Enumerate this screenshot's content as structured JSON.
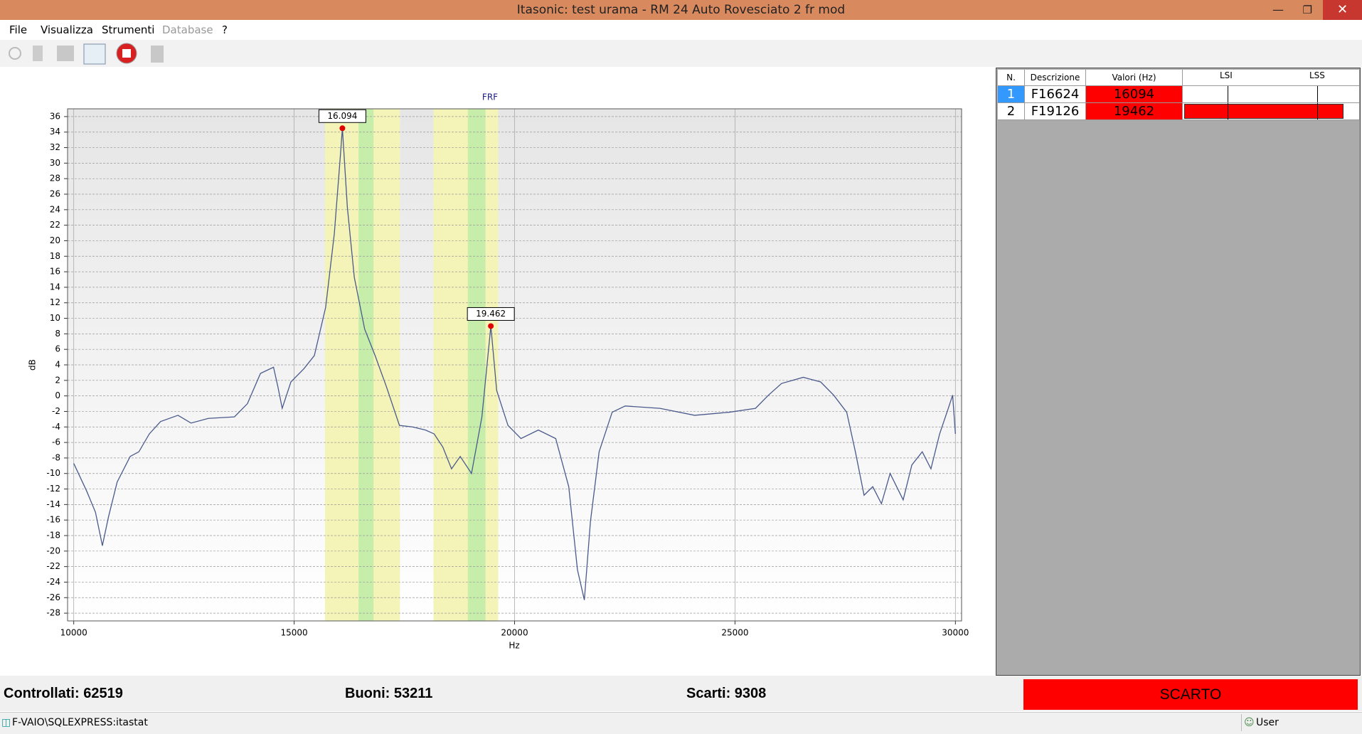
{
  "window": {
    "title": "Itasonic: test urama - RM 24 Auto Rovesciato 2 fr mod"
  },
  "menu": [
    "File",
    "Visualizza",
    "Strumenti",
    "Database",
    "?"
  ],
  "chart_data": {
    "type": "line",
    "title": "FRF",
    "x_label": "Hz",
    "y_label": "dB",
    "xlim": [
      9860,
      30140
    ],
    "ylim": [
      -29,
      37
    ],
    "xticks": [
      10000,
      15000,
      20000,
      25000,
      30000
    ],
    "yticks": [
      -28,
      -26,
      -24,
      -22,
      -20,
      -18,
      -16,
      -14,
      -12,
      -10,
      -8,
      -6,
      -4,
      -2,
      0,
      2,
      4,
      6,
      8,
      10,
      12,
      14,
      16,
      18,
      20,
      22,
      24,
      26,
      28,
      30,
      32,
      34,
      36
    ],
    "grid": true,
    "bands": [
      {
        "x": [
          15700,
          17400
        ],
        "color": "#f4f4b8"
      },
      {
        "x": [
          18160,
          19630
        ],
        "color": "#f4f4b8"
      },
      {
        "x": [
          16460,
          16800
        ],
        "color": "#c6eeaa"
      },
      {
        "x": [
          18940,
          19340
        ],
        "color": "#c6eeaa"
      }
    ],
    "x": [
      10000,
      10296,
      10493,
      10650,
      10788,
      10985,
      11281,
      11478,
      11714,
      11970,
      12364,
      12660,
      13054,
      13645,
      13940,
      14236,
      14532,
      14630,
      14729,
      14926,
      15221,
      15458,
      15714,
      15911,
      16049,
      16094,
      16207,
      16364,
      16600,
      16836,
      17092,
      17388,
      17683,
      17979,
      18176,
      18373,
      18570,
      18767,
      19023,
      19259,
      19462,
      19594,
      19850,
      20145,
      20539,
      20933,
      21229,
      21426,
      21583,
      21721,
      21918,
      22214,
      22509,
      23297,
      24085,
      24874,
      25465,
      25760,
      26056,
      26549,
      26943,
      27238,
      27534,
      27731,
      27928,
      28125,
      28322,
      28519,
      28815,
      29012,
      29248,
      29445,
      29642,
      29839,
      29937,
      30000
    ],
    "series": [
      {
        "color": "#4a5a8c",
        "values": [
          -8.7,
          -12.3,
          -15,
          -19.3,
          -15.6,
          -11.1,
          -7.8,
          -7.2,
          -4.9,
          -3.3,
          -2.5,
          -3.5,
          -2.9,
          -2.7,
          -1,
          2.9,
          3.7,
          1.2,
          -1.6,
          1.8,
          3.5,
          5.2,
          11.4,
          20.9,
          31,
          34.5,
          24.3,
          15.3,
          8.6,
          5.2,
          1.2,
          -3.8,
          -4,
          -4.4,
          -4.9,
          -6.6,
          -9.4,
          -7.8,
          -10,
          -2.7,
          9,
          0.7,
          -3.8,
          -5.5,
          -4.4,
          -5.5,
          -11.7,
          -22.4,
          -26.3,
          -16.2,
          -7.2,
          -2.1,
          -1.3,
          -1.6,
          -2.5,
          -2.1,
          -1.6,
          0.1,
          1.6,
          2.4,
          1.8,
          0.1,
          -2.1,
          -7.2,
          -12.8,
          -11.7,
          -13.9,
          -10,
          -13.4,
          -8.9,
          -7.2,
          -9.4,
          -4.9,
          -1.6,
          0.1,
          -4.9
        ]
      }
    ],
    "markers": {
      "color": "#e00000",
      "x": [
        16094,
        19462
      ],
      "values": [
        34.5,
        9
      ],
      "value_labels": [
        "16.094",
        "19.462"
      ]
    }
  },
  "table": {
    "header": [
      "N.",
      "Descrizione",
      "Valori (Hz)",
      "LSI",
      "LSS"
    ],
    "rows": [
      [
        "1",
        "F16624",
        "16094"
      ],
      [
        "2",
        "F19126",
        "19462"
      ]
    ]
  },
  "counters": [
    "Controllati: 62519",
    "Buoni: 53211",
    "Scarti: 9308"
  ],
  "result": "SCARTO",
  "status_bar": {
    "connection": "F-VAIO\\SQLEXPRESS:itastat",
    "user": "User"
  }
}
